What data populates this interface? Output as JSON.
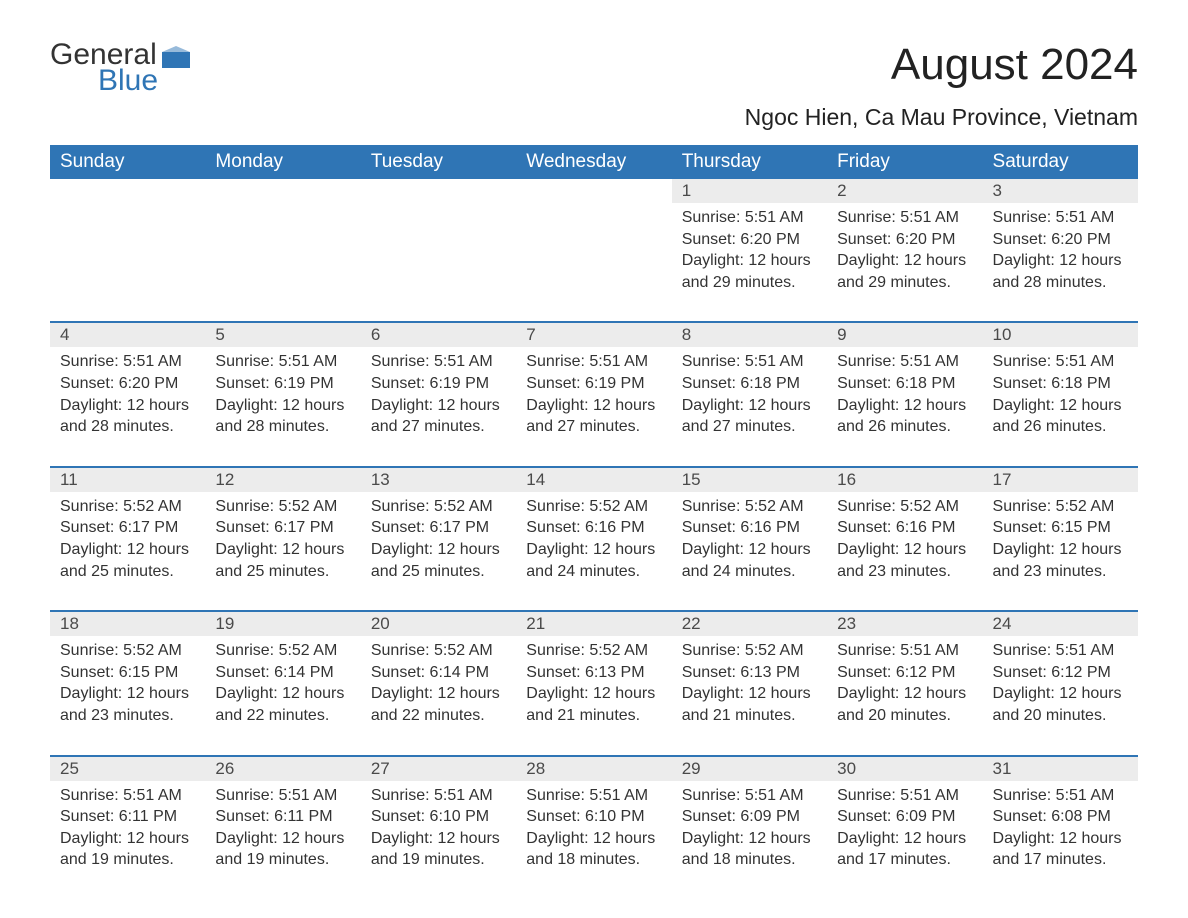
{
  "logo": {
    "general": "General",
    "blue": "Blue",
    "accent_color": "#2f75b5"
  },
  "title": "August 2024",
  "location": "Ngoc Hien, Ca Mau Province, Vietnam",
  "colors": {
    "header_bg": "#2f75b5",
    "header_text": "#ffffff",
    "daynum_bg": "#ececec",
    "divider": "#2f75b5",
    "body_text": "#333333",
    "page_bg": "#ffffff"
  },
  "weekdays": [
    "Sunday",
    "Monday",
    "Tuesday",
    "Wednesday",
    "Thursday",
    "Friday",
    "Saturday"
  ],
  "weeks": [
    [
      {
        "empty": true
      },
      {
        "empty": true
      },
      {
        "empty": true
      },
      {
        "empty": true
      },
      {
        "day": "1",
        "sunrise": "Sunrise: 5:51 AM",
        "sunset": "Sunset: 6:20 PM",
        "daylight1": "Daylight: 12 hours",
        "daylight2": "and 29 minutes."
      },
      {
        "day": "2",
        "sunrise": "Sunrise: 5:51 AM",
        "sunset": "Sunset: 6:20 PM",
        "daylight1": "Daylight: 12 hours",
        "daylight2": "and 29 minutes."
      },
      {
        "day": "3",
        "sunrise": "Sunrise: 5:51 AM",
        "sunset": "Sunset: 6:20 PM",
        "daylight1": "Daylight: 12 hours",
        "daylight2": "and 28 minutes."
      }
    ],
    [
      {
        "day": "4",
        "sunrise": "Sunrise: 5:51 AM",
        "sunset": "Sunset: 6:20 PM",
        "daylight1": "Daylight: 12 hours",
        "daylight2": "and 28 minutes."
      },
      {
        "day": "5",
        "sunrise": "Sunrise: 5:51 AM",
        "sunset": "Sunset: 6:19 PM",
        "daylight1": "Daylight: 12 hours",
        "daylight2": "and 28 minutes."
      },
      {
        "day": "6",
        "sunrise": "Sunrise: 5:51 AM",
        "sunset": "Sunset: 6:19 PM",
        "daylight1": "Daylight: 12 hours",
        "daylight2": "and 27 minutes."
      },
      {
        "day": "7",
        "sunrise": "Sunrise: 5:51 AM",
        "sunset": "Sunset: 6:19 PM",
        "daylight1": "Daylight: 12 hours",
        "daylight2": "and 27 minutes."
      },
      {
        "day": "8",
        "sunrise": "Sunrise: 5:51 AM",
        "sunset": "Sunset: 6:18 PM",
        "daylight1": "Daylight: 12 hours",
        "daylight2": "and 27 minutes."
      },
      {
        "day": "9",
        "sunrise": "Sunrise: 5:51 AM",
        "sunset": "Sunset: 6:18 PM",
        "daylight1": "Daylight: 12 hours",
        "daylight2": "and 26 minutes."
      },
      {
        "day": "10",
        "sunrise": "Sunrise: 5:51 AM",
        "sunset": "Sunset: 6:18 PM",
        "daylight1": "Daylight: 12 hours",
        "daylight2": "and 26 minutes."
      }
    ],
    [
      {
        "day": "11",
        "sunrise": "Sunrise: 5:52 AM",
        "sunset": "Sunset: 6:17 PM",
        "daylight1": "Daylight: 12 hours",
        "daylight2": "and 25 minutes."
      },
      {
        "day": "12",
        "sunrise": "Sunrise: 5:52 AM",
        "sunset": "Sunset: 6:17 PM",
        "daylight1": "Daylight: 12 hours",
        "daylight2": "and 25 minutes."
      },
      {
        "day": "13",
        "sunrise": "Sunrise: 5:52 AM",
        "sunset": "Sunset: 6:17 PM",
        "daylight1": "Daylight: 12 hours",
        "daylight2": "and 25 minutes."
      },
      {
        "day": "14",
        "sunrise": "Sunrise: 5:52 AM",
        "sunset": "Sunset: 6:16 PM",
        "daylight1": "Daylight: 12 hours",
        "daylight2": "and 24 minutes."
      },
      {
        "day": "15",
        "sunrise": "Sunrise: 5:52 AM",
        "sunset": "Sunset: 6:16 PM",
        "daylight1": "Daylight: 12 hours",
        "daylight2": "and 24 minutes."
      },
      {
        "day": "16",
        "sunrise": "Sunrise: 5:52 AM",
        "sunset": "Sunset: 6:16 PM",
        "daylight1": "Daylight: 12 hours",
        "daylight2": "and 23 minutes."
      },
      {
        "day": "17",
        "sunrise": "Sunrise: 5:52 AM",
        "sunset": "Sunset: 6:15 PM",
        "daylight1": "Daylight: 12 hours",
        "daylight2": "and 23 minutes."
      }
    ],
    [
      {
        "day": "18",
        "sunrise": "Sunrise: 5:52 AM",
        "sunset": "Sunset: 6:15 PM",
        "daylight1": "Daylight: 12 hours",
        "daylight2": "and 23 minutes."
      },
      {
        "day": "19",
        "sunrise": "Sunrise: 5:52 AM",
        "sunset": "Sunset: 6:14 PM",
        "daylight1": "Daylight: 12 hours",
        "daylight2": "and 22 minutes."
      },
      {
        "day": "20",
        "sunrise": "Sunrise: 5:52 AM",
        "sunset": "Sunset: 6:14 PM",
        "daylight1": "Daylight: 12 hours",
        "daylight2": "and 22 minutes."
      },
      {
        "day": "21",
        "sunrise": "Sunrise: 5:52 AM",
        "sunset": "Sunset: 6:13 PM",
        "daylight1": "Daylight: 12 hours",
        "daylight2": "and 21 minutes."
      },
      {
        "day": "22",
        "sunrise": "Sunrise: 5:52 AM",
        "sunset": "Sunset: 6:13 PM",
        "daylight1": "Daylight: 12 hours",
        "daylight2": "and 21 minutes."
      },
      {
        "day": "23",
        "sunrise": "Sunrise: 5:51 AM",
        "sunset": "Sunset: 6:12 PM",
        "daylight1": "Daylight: 12 hours",
        "daylight2": "and 20 minutes."
      },
      {
        "day": "24",
        "sunrise": "Sunrise: 5:51 AM",
        "sunset": "Sunset: 6:12 PM",
        "daylight1": "Daylight: 12 hours",
        "daylight2": "and 20 minutes."
      }
    ],
    [
      {
        "day": "25",
        "sunrise": "Sunrise: 5:51 AM",
        "sunset": "Sunset: 6:11 PM",
        "daylight1": "Daylight: 12 hours",
        "daylight2": "and 19 minutes."
      },
      {
        "day": "26",
        "sunrise": "Sunrise: 5:51 AM",
        "sunset": "Sunset: 6:11 PM",
        "daylight1": "Daylight: 12 hours",
        "daylight2": "and 19 minutes."
      },
      {
        "day": "27",
        "sunrise": "Sunrise: 5:51 AM",
        "sunset": "Sunset: 6:10 PM",
        "daylight1": "Daylight: 12 hours",
        "daylight2": "and 19 minutes."
      },
      {
        "day": "28",
        "sunrise": "Sunrise: 5:51 AM",
        "sunset": "Sunset: 6:10 PM",
        "daylight1": "Daylight: 12 hours",
        "daylight2": "and 18 minutes."
      },
      {
        "day": "29",
        "sunrise": "Sunrise: 5:51 AM",
        "sunset": "Sunset: 6:09 PM",
        "daylight1": "Daylight: 12 hours",
        "daylight2": "and 18 minutes."
      },
      {
        "day": "30",
        "sunrise": "Sunrise: 5:51 AM",
        "sunset": "Sunset: 6:09 PM",
        "daylight1": "Daylight: 12 hours",
        "daylight2": "and 17 minutes."
      },
      {
        "day": "31",
        "sunrise": "Sunrise: 5:51 AM",
        "sunset": "Sunset: 6:08 PM",
        "daylight1": "Daylight: 12 hours",
        "daylight2": "and 17 minutes."
      }
    ]
  ]
}
